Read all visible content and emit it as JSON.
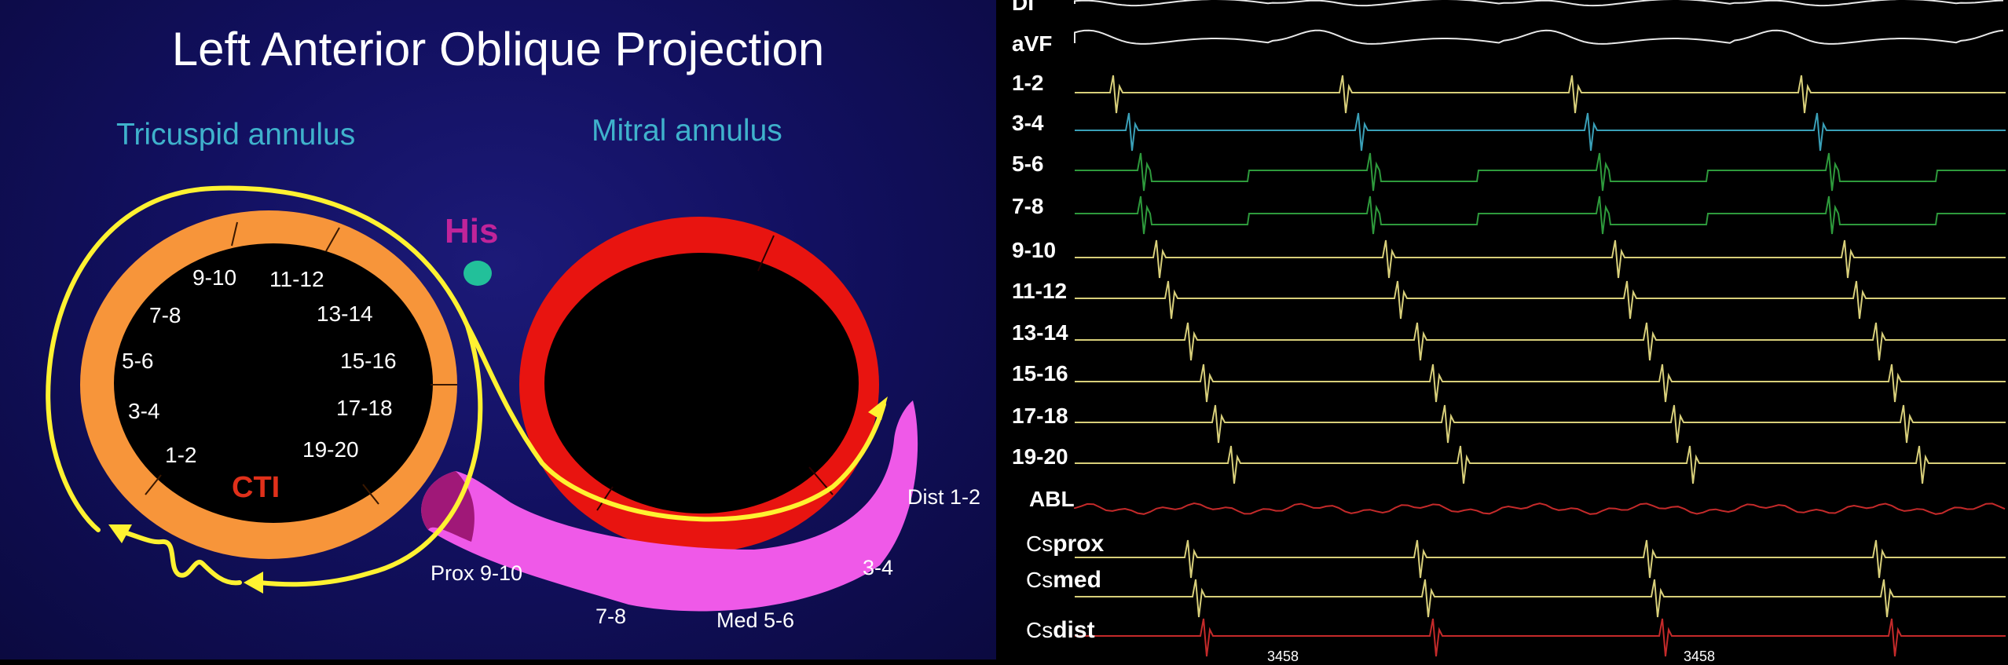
{
  "diagram": {
    "title": "Left Anterior Oblique Projection",
    "tricuspid_label": "Tricuspid annulus",
    "mitral_label": "Mitral annulus",
    "his_label": "His",
    "cti_label": "CTI",
    "tricuspid_poles": [
      "9-10",
      "11-12",
      "7-8",
      "13-14",
      "5-6",
      "15-16",
      "3-4",
      "17-18",
      "1-2",
      "19-20"
    ],
    "cs_poles": [
      "Dist 1-2",
      "3-4",
      "Med 5-6",
      "7-8",
      "Prox 9-10"
    ],
    "colors": {
      "tricuspid": "#f7953a",
      "mitral": "#ee1111",
      "cs": "#ef59e8",
      "activation": "#fff231",
      "his": "#22c09a"
    }
  },
  "egm": {
    "channels": [
      {
        "label": "DI",
        "color": "#e8e8e8"
      },
      {
        "label": "aVF",
        "color": "#e8e8e8"
      },
      {
        "label": "1-2",
        "color": "#d8cf7a"
      },
      {
        "label": "3-4",
        "color": "#3aa0b8"
      },
      {
        "label": "5-6",
        "color": "#2e9a3c"
      },
      {
        "label": "7-8",
        "color": "#2e9a3c"
      },
      {
        "label": "9-10",
        "color": "#d8cf7a"
      },
      {
        "label": "11-12",
        "color": "#d8cf7a"
      },
      {
        "label": "13-14",
        "color": "#d8cf7a"
      },
      {
        "label": "15-16",
        "color": "#d8cf7a"
      },
      {
        "label": "17-18",
        "color": "#d8cf7a"
      },
      {
        "label": "19-20",
        "color": "#d8cf7a"
      },
      {
        "label": "ABL",
        "color": "#c42a2a"
      },
      {
        "label_small": "Cs",
        "label_bold": "prox",
        "color": "#d8cf7a"
      },
      {
        "label_small": "Cs",
        "label_bold": "med",
        "color": "#d8cf7a"
      },
      {
        "label_small": "Cs",
        "label_bold": "dist",
        "color": "#c42a2a"
      }
    ],
    "footer_values": [
      "3458",
      "3458"
    ]
  }
}
